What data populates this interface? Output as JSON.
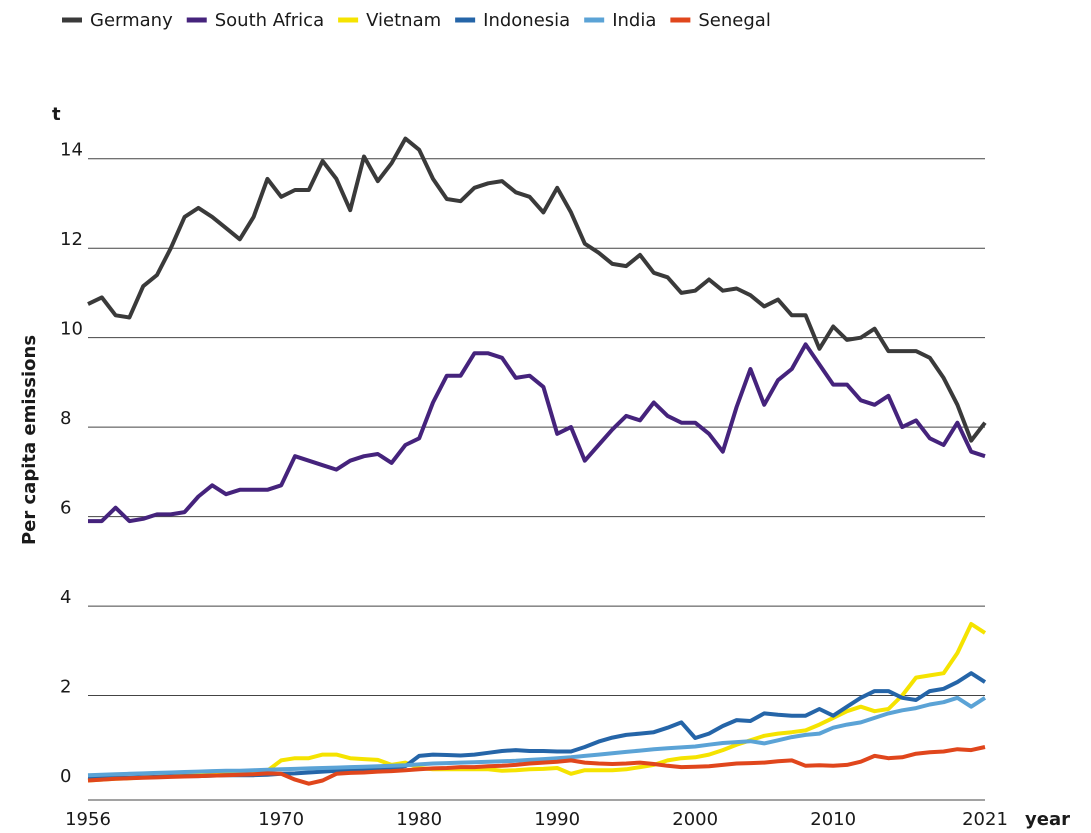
{
  "chart_data": {
    "type": "line",
    "y_label": "Per capita emissions",
    "y_unit": "t",
    "x_label": "year",
    "x": [
      1956,
      1957,
      1958,
      1959,
      1960,
      1961,
      1962,
      1963,
      1964,
      1965,
      1966,
      1967,
      1968,
      1969,
      1970,
      1971,
      1972,
      1973,
      1974,
      1975,
      1976,
      1977,
      1978,
      1979,
      1980,
      1981,
      1982,
      1983,
      1984,
      1985,
      1986,
      1987,
      1988,
      1989,
      1990,
      1991,
      1992,
      1993,
      1994,
      1995,
      1996,
      1997,
      1998,
      1999,
      2000,
      2001,
      2002,
      2003,
      2004,
      2005,
      2006,
      2007,
      2008,
      2009,
      2010,
      2011,
      2012,
      2013,
      2014,
      2015,
      2016,
      2017,
      2018,
      2019,
      2020,
      2021
    ],
    "xlim": [
      1956,
      2021
    ],
    "xticks": [
      1956,
      1970,
      1980,
      1990,
      2000,
      2010,
      2021
    ],
    "ylim": [
      0,
      15
    ],
    "yticks": [
      0,
      2,
      4,
      6,
      8,
      10,
      12,
      14
    ],
    "grid": true,
    "legend": "top",
    "series": [
      {
        "name": "Germany",
        "color": "#3a3a3a",
        "values": [
          10.75,
          10.9,
          10.5,
          10.45,
          11.15,
          11.4,
          12.0,
          12.7,
          12.9,
          12.7,
          12.45,
          12.2,
          12.7,
          13.55,
          13.15,
          13.3,
          13.3,
          13.95,
          13.55,
          12.85,
          14.05,
          13.5,
          13.9,
          14.45,
          14.2,
          13.55,
          13.1,
          13.05,
          13.35,
          13.45,
          13.5,
          13.25,
          13.15,
          12.8,
          13.35,
          12.8,
          12.1,
          11.9,
          11.65,
          11.6,
          11.85,
          11.45,
          11.35,
          11.0,
          11.05,
          11.3,
          11.05,
          11.1,
          10.95,
          10.7,
          10.85,
          10.5,
          10.5,
          9.75,
          10.25,
          9.95,
          10.0,
          10.2,
          9.7,
          9.7,
          9.7,
          9.55,
          9.1,
          8.5,
          7.7,
          8.1
        ]
      },
      {
        "name": "South Africa",
        "color": "#45237c",
        "values": [
          5.9,
          5.9,
          6.2,
          5.9,
          5.95,
          6.05,
          6.05,
          6.1,
          6.45,
          6.7,
          6.5,
          6.6,
          6.6,
          6.6,
          6.7,
          7.35,
          7.25,
          7.15,
          7.05,
          7.25,
          7.35,
          7.4,
          7.2,
          7.6,
          7.75,
          8.55,
          9.15,
          9.15,
          9.65,
          9.65,
          9.55,
          9.1,
          9.15,
          8.9,
          7.85,
          8.0,
          7.25,
          7.6,
          7.95,
          8.25,
          8.15,
          8.55,
          8.25,
          8.1,
          8.1,
          7.85,
          7.45,
          8.45,
          9.3,
          8.5,
          9.05,
          9.3,
          9.85,
          9.4,
          8.95,
          8.95,
          8.6,
          8.5,
          8.7,
          8.0,
          8.15,
          7.75,
          7.6,
          8.1,
          7.45,
          7.35
        ]
      },
      {
        "name": "Vietnam",
        "color": "#f5e300",
        "values": [
          0.1,
          0.12,
          0.14,
          0.15,
          0.17,
          0.18,
          0.2,
          0.22,
          0.24,
          0.26,
          0.28,
          0.3,
          0.3,
          0.32,
          0.55,
          0.6,
          0.6,
          0.68,
          0.68,
          0.6,
          0.58,
          0.56,
          0.45,
          0.5,
          0.38,
          0.35,
          0.35,
          0.35,
          0.35,
          0.35,
          0.32,
          0.33,
          0.35,
          0.36,
          0.38,
          0.25,
          0.33,
          0.33,
          0.33,
          0.35,
          0.4,
          0.45,
          0.55,
          0.6,
          0.62,
          0.68,
          0.78,
          0.9,
          1.0,
          1.1,
          1.15,
          1.18,
          1.22,
          1.35,
          1.5,
          1.65,
          1.75,
          1.65,
          1.7,
          2.0,
          2.4,
          2.45,
          2.5,
          2.95,
          3.6,
          3.4
        ]
      },
      {
        "name": "Indonesia",
        "color": "#2565a8",
        "values": [
          0.15,
          0.15,
          0.16,
          0.16,
          0.17,
          0.18,
          0.19,
          0.2,
          0.2,
          0.21,
          0.22,
          0.22,
          0.22,
          0.23,
          0.25,
          0.26,
          0.28,
          0.3,
          0.32,
          0.33,
          0.34,
          0.36,
          0.38,
          0.42,
          0.65,
          0.68,
          0.67,
          0.66,
          0.68,
          0.72,
          0.76,
          0.78,
          0.76,
          0.76,
          0.75,
          0.75,
          0.85,
          0.97,
          1.06,
          1.12,
          1.15,
          1.18,
          1.28,
          1.4,
          1.05,
          1.15,
          1.32,
          1.45,
          1.43,
          1.6,
          1.57,
          1.55,
          1.55,
          1.7,
          1.55,
          1.75,
          1.95,
          2.1,
          2.1,
          1.95,
          1.9,
          2.1,
          2.15,
          2.3,
          2.5,
          2.3
        ]
      },
      {
        "name": "India",
        "color": "#5ba3d6",
        "values": [
          0.22,
          0.23,
          0.24,
          0.25,
          0.26,
          0.27,
          0.28,
          0.29,
          0.3,
          0.31,
          0.32,
          0.32,
          0.33,
          0.34,
          0.35,
          0.36,
          0.37,
          0.38,
          0.39,
          0.4,
          0.41,
          0.42,
          0.43,
          0.44,
          0.46,
          0.48,
          0.49,
          0.5,
          0.51,
          0.52,
          0.53,
          0.54,
          0.56,
          0.58,
          0.6,
          0.62,
          0.65,
          0.68,
          0.71,
          0.74,
          0.77,
          0.8,
          0.82,
          0.84,
          0.86,
          0.9,
          0.94,
          0.96,
          0.98,
          0.93,
          1.0,
          1.07,
          1.12,
          1.15,
          1.28,
          1.35,
          1.4,
          1.5,
          1.6,
          1.67,
          1.72,
          1.8,
          1.85,
          1.95,
          1.75,
          1.95
        ]
      },
      {
        "name": "Senegal",
        "color": "#e0461c",
        "values": [
          0.1,
          0.12,
          0.14,
          0.15,
          0.16,
          0.17,
          0.18,
          0.19,
          0.2,
          0.21,
          0.22,
          0.23,
          0.24,
          0.26,
          0.25,
          0.12,
          0.03,
          0.1,
          0.25,
          0.27,
          0.28,
          0.3,
          0.31,
          0.33,
          0.35,
          0.37,
          0.38,
          0.4,
          0.4,
          0.42,
          0.43,
          0.45,
          0.48,
          0.5,
          0.52,
          0.55,
          0.5,
          0.48,
          0.47,
          0.48,
          0.5,
          0.47,
          0.43,
          0.4,
          0.41,
          0.42,
          0.45,
          0.48,
          0.49,
          0.5,
          0.53,
          0.55,
          0.43,
          0.44,
          0.43,
          0.45,
          0.52,
          0.65,
          0.6,
          0.62,
          0.7,
          0.73,
          0.75,
          0.8,
          0.78,
          0.85
        ]
      }
    ]
  }
}
